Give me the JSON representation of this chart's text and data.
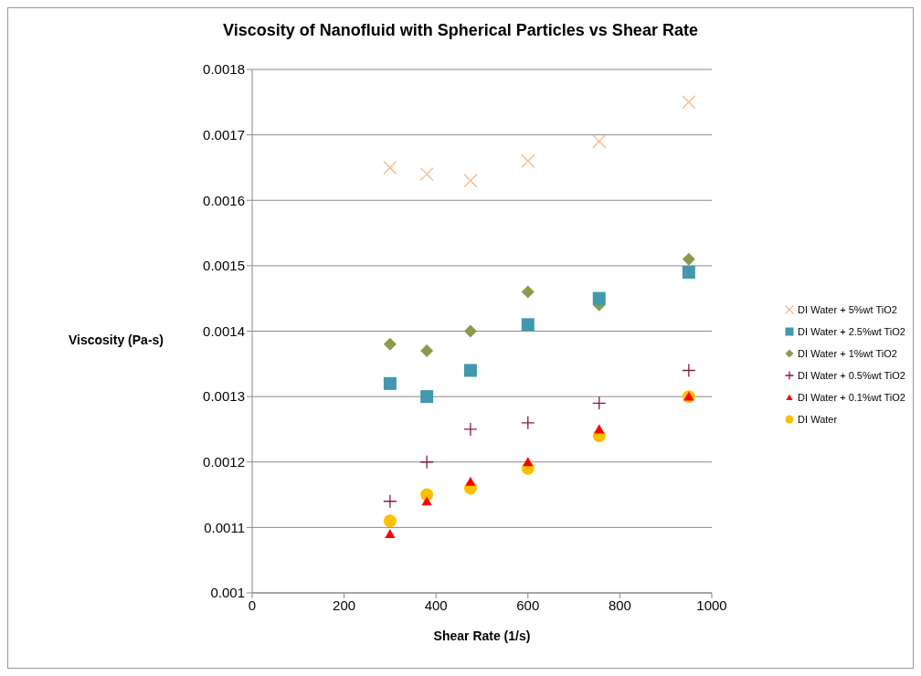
{
  "chart_data": {
    "type": "scatter",
    "title": "Viscosity of Nanofluid with Spherical Particles vs Shear Rate",
    "xlabel": "Shear Rate (1/s)",
    "ylabel": "Viscosity (Pa-s)",
    "x": [
      300,
      380,
      475,
      600,
      755,
      950
    ],
    "series": [
      {
        "name": "DI Water + 5%wt TiO2",
        "color": "#f4b98c",
        "marker": "cross",
        "values": [
          0.00165,
          0.00164,
          0.00163,
          0.00166,
          0.00169,
          0.00175
        ]
      },
      {
        "name": "DI Water + 2.5%wt TiO2",
        "color": "#4198af",
        "marker": "square",
        "values": [
          0.00132,
          0.0013,
          0.00134,
          0.00141,
          0.00145,
          0.00149
        ]
      },
      {
        "name": "DI Water + 1%wt TiO2",
        "color": "#8c9a4c",
        "marker": "diamond",
        "values": [
          0.00138,
          0.00137,
          0.0014,
          0.00146,
          0.00144,
          0.00151
        ]
      },
      {
        "name": "DI Water + 0.5%wt TiO2",
        "color": "#8b1a3a",
        "marker": "plus",
        "values": [
          0.00114,
          0.0012,
          0.00125,
          0.00126,
          0.00129,
          0.00134
        ]
      },
      {
        "name": "DI Water + 0.1%wt TiO2",
        "color": "#ff0000",
        "marker": "triangle",
        "values": [
          0.00109,
          0.00114,
          0.00117,
          0.0012,
          0.00125,
          0.0013
        ]
      },
      {
        "name": "DI Water",
        "color": "#ffc000",
        "marker": "circle",
        "values": [
          0.00111,
          0.00115,
          0.00116,
          0.00119,
          0.00124,
          0.0013
        ]
      }
    ],
    "xlim": [
      0,
      1000
    ],
    "xticks": [
      0,
      200,
      400,
      600,
      800,
      1000
    ],
    "ylim": [
      0.001,
      0.0018
    ],
    "yticks": [
      0.001,
      0.0011,
      0.0012,
      0.0013,
      0.0014,
      0.0015,
      0.0016,
      0.0017,
      0.0018
    ],
    "grid": "y",
    "legend": "right"
  }
}
